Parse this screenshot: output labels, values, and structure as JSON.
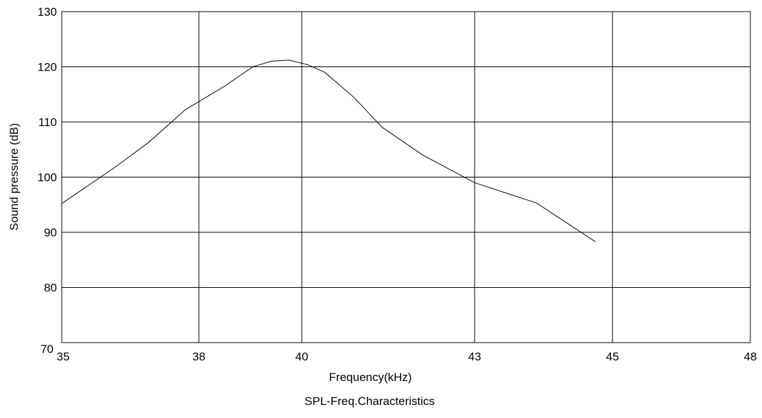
{
  "chart_data": {
    "type": "line",
    "title": "SPL-Freq.Characteristics",
    "xlabel": "Frequency(kHz)",
    "ylabel": "Sound pressure (dB)",
    "x_ticks": [
      "35",
      "38",
      "40",
      "43",
      "45",
      "48"
    ],
    "y_ticks": [
      "70",
      "80",
      "90",
      "100",
      "110",
      "120",
      "130"
    ],
    "ylim": [
      70,
      130
    ],
    "grid": true,
    "series": [
      {
        "x": [
          35.0,
          36.2,
          36.9,
          37.7,
          38.5,
          39.05,
          39.4,
          39.75,
          40.1,
          40.4,
          40.9,
          41.4,
          42.1,
          43.0,
          43.9,
          44.75
        ],
        "y": [
          95.2,
          102.0,
          106.3,
          112.2,
          116.5,
          120.0,
          121.0,
          121.2,
          120.4,
          119.0,
          114.5,
          109.0,
          104.0,
          99.0,
          95.3,
          88.3
        ]
      }
    ]
  }
}
